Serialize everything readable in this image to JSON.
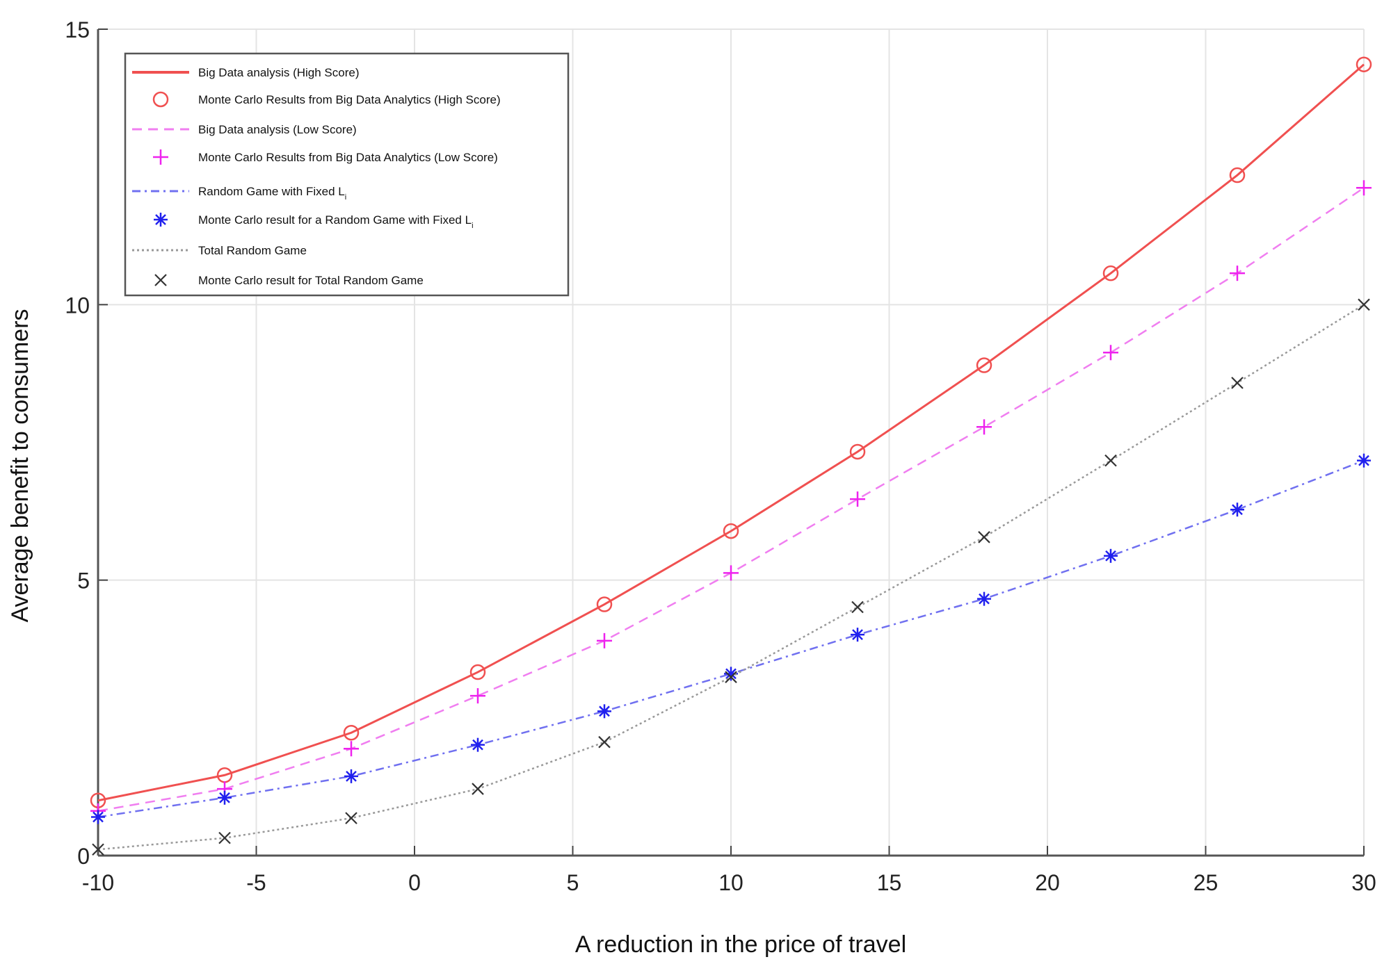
{
  "chart_data": {
    "type": "line",
    "title": "",
    "xlabel": "A reduction in the price of travel",
    "ylabel": "Average benefit to consumers",
    "xlim": [
      -10,
      30
    ],
    "ylim": [
      0,
      15
    ],
    "xticks": [
      -10,
      -5,
      0,
      5,
      10,
      15,
      20,
      25,
      30
    ],
    "yticks": [
      0,
      5,
      10,
      15
    ],
    "grid": true,
    "legend_position": "top-left",
    "x": [
      -10,
      -6,
      -2,
      2,
      6,
      10,
      14,
      18,
      22,
      26,
      30
    ],
    "series": [
      {
        "name": "Big Data analysis (High Score)",
        "style": "solid",
        "marker": "none",
        "color": "#f05050",
        "values": [
          1.0,
          1.46,
          2.23,
          3.33,
          4.56,
          5.89,
          7.33,
          8.9,
          10.57,
          12.35,
          14.36
        ]
      },
      {
        "name": "Monte Carlo Results from Big Data Analytics (High Score)",
        "style": "none",
        "marker": "circle",
        "color": "#f05050",
        "values": [
          1.0,
          1.46,
          2.23,
          3.33,
          4.56,
          5.89,
          7.33,
          8.9,
          10.57,
          12.35,
          14.36
        ]
      },
      {
        "name": "Big Data analysis (Low Score)",
        "style": "dashed",
        "marker": "none",
        "color": "#f07ef0",
        "values": [
          0.81,
          1.21,
          1.94,
          2.9,
          3.9,
          5.13,
          6.47,
          7.78,
          9.13,
          10.57,
          12.12
        ]
      },
      {
        "name": "Monte Carlo Results from Big Data Analytics (Low Score)",
        "style": "none",
        "marker": "plus",
        "color": "#ee22ee",
        "values": [
          0.81,
          1.21,
          1.94,
          2.9,
          3.9,
          5.13,
          6.47,
          7.78,
          9.13,
          10.57,
          12.12
        ]
      },
      {
        "name": "Random Game with Fixed L",
        "sub": "i",
        "style": "dashdot",
        "marker": "none",
        "color": "#7070f0",
        "values": [
          0.7,
          1.05,
          1.44,
          2.01,
          2.62,
          3.3,
          4.01,
          4.66,
          5.44,
          6.28,
          7.17
        ]
      },
      {
        "name": "Monte Carlo result for a Random Game with Fixed L",
        "sub": "i",
        "style": "none",
        "marker": "star",
        "color": "#2020ee",
        "values": [
          0.7,
          1.05,
          1.44,
          2.01,
          2.62,
          3.3,
          4.01,
          4.66,
          5.44,
          6.28,
          7.17
        ]
      },
      {
        "name": "Total Random Game",
        "style": "dotted",
        "marker": "none",
        "color": "#999999",
        "values": [
          0.11,
          0.32,
          0.68,
          1.21,
          2.06,
          3.24,
          4.51,
          5.78,
          7.17,
          8.58,
          10.0
        ]
      },
      {
        "name": "Monte Carlo result for Total Random Game",
        "style": "none",
        "marker": "x",
        "color": "#333333",
        "values": [
          0.11,
          0.32,
          0.68,
          1.21,
          2.06,
          3.24,
          4.51,
          5.78,
          7.17,
          8.58,
          10.0
        ]
      }
    ]
  }
}
